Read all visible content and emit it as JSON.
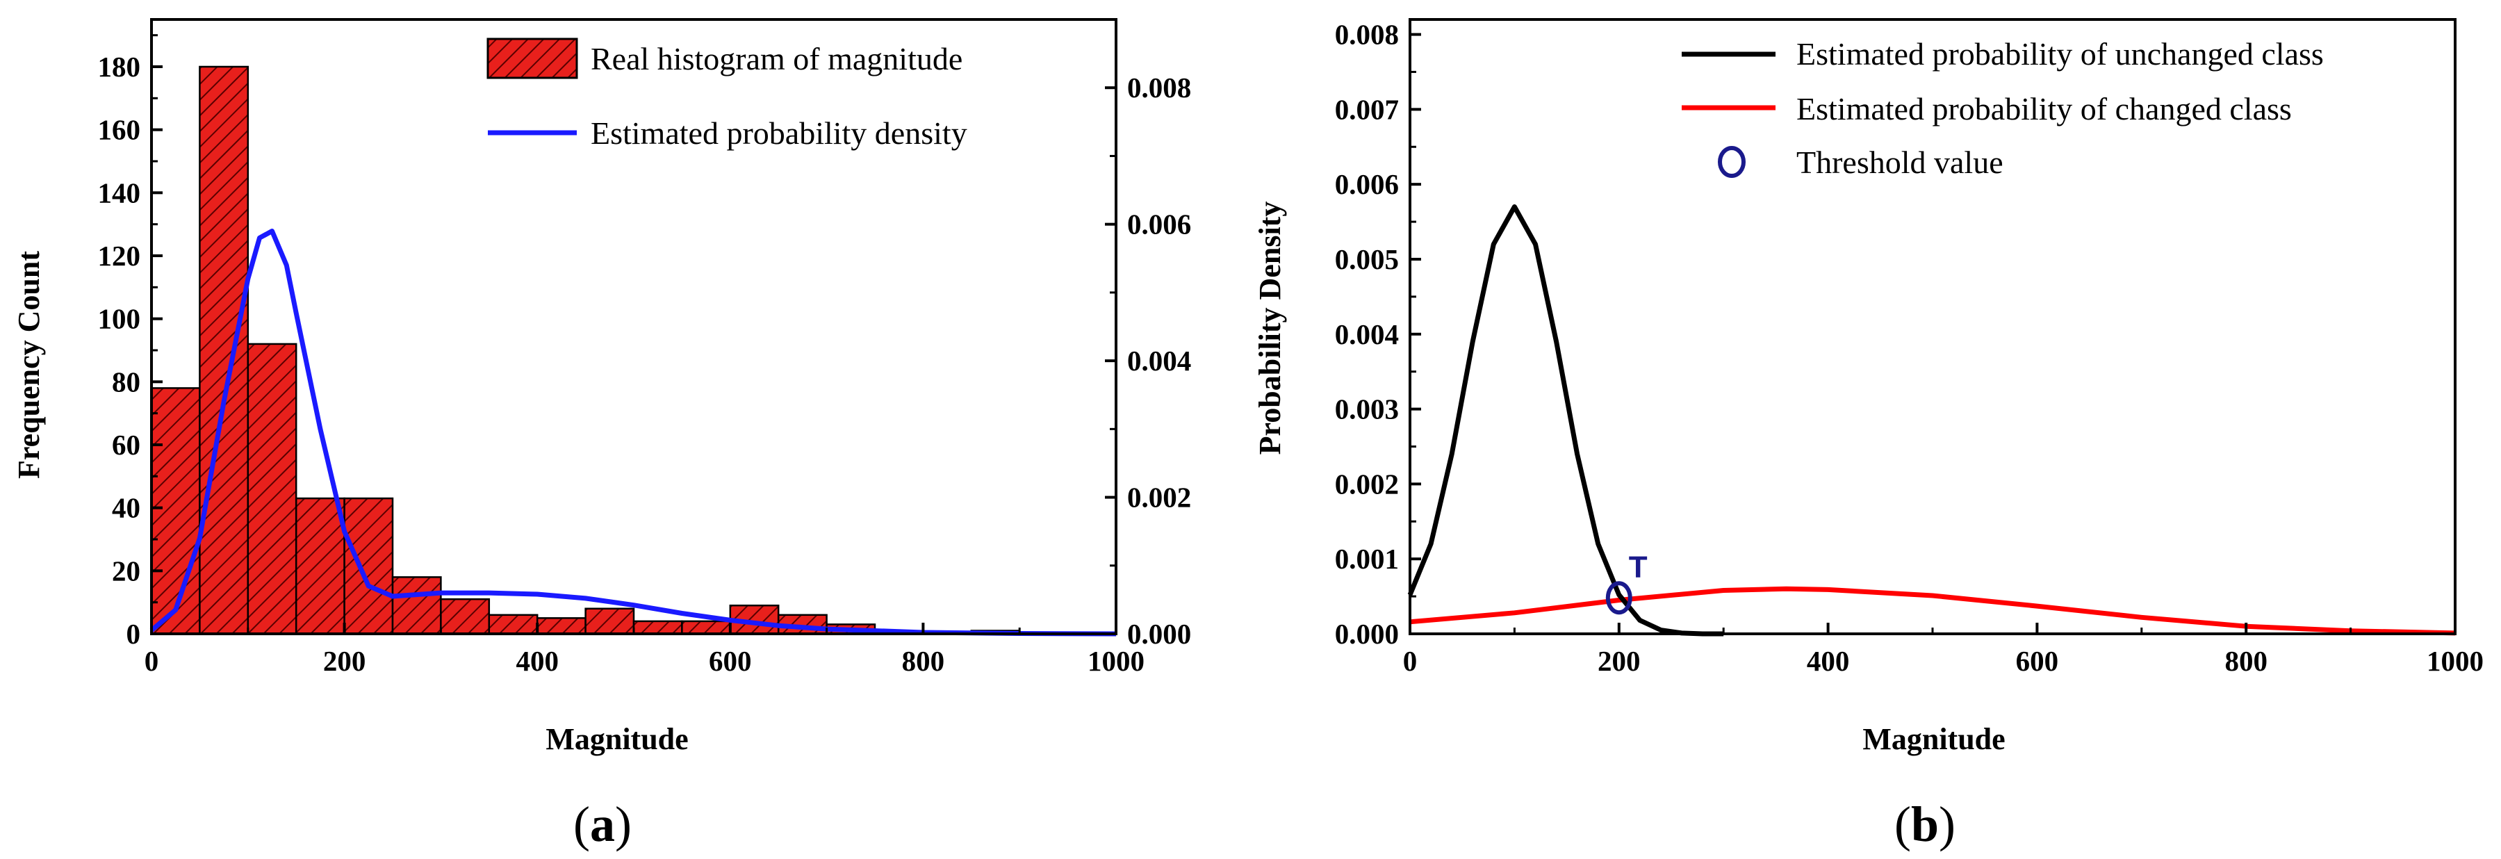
{
  "chart_data": [
    {
      "panel": "a",
      "type": "bar",
      "title": "",
      "xlabel": "Magnitude",
      "ylabel": "Frequency Count",
      "y2label": "",
      "xlim": [
        0,
        1000
      ],
      "ylim": [
        0,
        195
      ],
      "y2lim": [
        0,
        0.009
      ],
      "xticks": [
        "0",
        "200",
        "400",
        "600",
        "800",
        "1000"
      ],
      "xtick_values": [
        0,
        200,
        400,
        600,
        800,
        1000
      ],
      "yticks": [
        "0",
        "20",
        "40",
        "60",
        "80",
        "100",
        "120",
        "140",
        "160",
        "180"
      ],
      "ytick_values": [
        0,
        20,
        40,
        60,
        80,
        100,
        120,
        140,
        160,
        180
      ],
      "y2ticks": [
        "0.000",
        "0.002",
        "0.004",
        "0.006",
        "0.008"
      ],
      "y2tick_values": [
        0,
        0.002,
        0.004,
        0.006,
        0.008
      ],
      "bin_width": 50,
      "bin_starts": [
        0,
        50,
        100,
        150,
        200,
        250,
        300,
        350,
        400,
        450,
        500,
        550,
        600,
        650,
        700,
        750,
        800,
        850,
        900,
        950
      ],
      "values": [
        78,
        180,
        92,
        43,
        43,
        18,
        11,
        6,
        5,
        8,
        4,
        4,
        9,
        6,
        3,
        0,
        0,
        1,
        0,
        0
      ],
      "density_curve": {
        "name": "Estimated probability density",
        "x": [
          0,
          25,
          50,
          75,
          100,
          112,
          125,
          140,
          150,
          175,
          200,
          225,
          250,
          300,
          350,
          400,
          450,
          500,
          550,
          600,
          650,
          700,
          800,
          900,
          1000
        ],
        "y": [
          5e-05,
          0.00035,
          0.0014,
          0.0034,
          0.0052,
          0.0058,
          0.0059,
          0.0054,
          0.0047,
          0.003,
          0.0015,
          0.0007,
          0.00055,
          0.0006,
          0.0006,
          0.00058,
          0.00052,
          0.00042,
          0.0003,
          0.0002,
          0.00012,
          7e-05,
          2e-05,
          5e-06,
          0.0
        ]
      },
      "legend": [
        {
          "label": "Real histogram of magnitude",
          "style": "hatched-red-bar"
        },
        {
          "label": "Estimated probability density",
          "style": "blue-line"
        }
      ],
      "legend_position": "top-right",
      "colors": {
        "bar": "#e8201c",
        "hatch": "#5a0000",
        "density": "#1a1aff"
      }
    },
    {
      "panel": "b",
      "type": "line",
      "title": "",
      "xlabel": "Magnitude",
      "ylabel": "Probability Density",
      "xlim": [
        0,
        1000
      ],
      "ylim": [
        0,
        0.0082
      ],
      "xticks": [
        "0",
        "200",
        "400",
        "600",
        "800",
        "1000"
      ],
      "xtick_values": [
        0,
        200,
        400,
        600,
        800,
        1000
      ],
      "yticks": [
        "0.000",
        "0.001",
        "0.002",
        "0.003",
        "0.004",
        "0.005",
        "0.006",
        "0.007",
        "0.008"
      ],
      "ytick_values": [
        0,
        0.001,
        0.002,
        0.003,
        0.004,
        0.005,
        0.006,
        0.007,
        0.008
      ],
      "series": [
        {
          "name": "Estimated probability of unchanged class",
          "color": "#000000",
          "x": [
            0,
            20,
            40,
            60,
            80,
            100,
            120,
            140,
            160,
            180,
            200,
            220,
            240,
            260,
            280,
            300
          ],
          "y": [
            0.00052,
            0.0012,
            0.0024,
            0.0039,
            0.0052,
            0.0057,
            0.0052,
            0.0039,
            0.0024,
            0.0012,
            0.00052,
            0.00018,
            5e-05,
            1e-05,
            0.0,
            0.0
          ]
        },
        {
          "name": "Estimated probability of changed class",
          "color": "#ff0000",
          "x": [
            0,
            100,
            200,
            300,
            360,
            400,
            500,
            600,
            700,
            800,
            900,
            1000
          ],
          "y": [
            0.00016,
            0.00028,
            0.00045,
            0.00058,
            0.0006,
            0.00059,
            0.00051,
            0.00037,
            0.00022,
            0.0001,
            4e-05,
            1e-05
          ]
        }
      ],
      "threshold": {
        "name": "Threshold value",
        "x": 200,
        "y": 0.00048,
        "label": "T",
        "color": "#1a1a8c"
      },
      "legend_position": "top-right"
    }
  ],
  "panel_labels": {
    "a": {
      "open": "(",
      "letter": "a",
      "close": ")"
    },
    "b": {
      "open": "(",
      "letter": "b",
      "close": ")"
    }
  }
}
